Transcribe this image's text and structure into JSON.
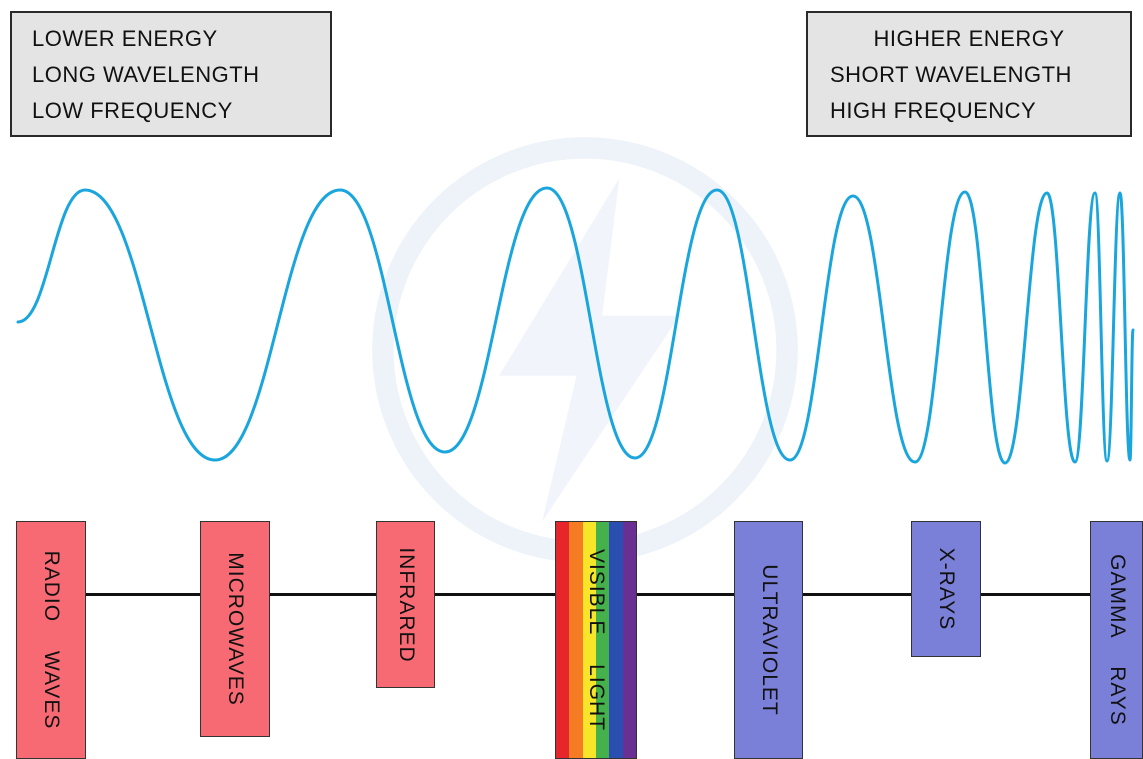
{
  "energy_low": {
    "line1": "LOWER  ENERGY",
    "line2": "LONG   WAVELENGTH",
    "line3": "LOW   FREQUENCY"
  },
  "energy_high": {
    "line1": "HIGHER  ENERGY",
    "line2": "SHORT   WAVELENGTH",
    "line3": "HIGH   FREQUENCY"
  },
  "bands": [
    {
      "id": "radio",
      "label": "RADIO WAVES",
      "color": "#f76a74"
    },
    {
      "id": "microwaves",
      "label": "MICROWAVES",
      "color": "#f76a74"
    },
    {
      "id": "infrared",
      "label": "INFRARED",
      "color": "#f76a74"
    },
    {
      "id": "visible",
      "label": "VISIBLE LIGHT",
      "color": "rainbow"
    },
    {
      "id": "ultraviolet",
      "label": "ULTRAVIOLET",
      "color": "#7a7fd8"
    },
    {
      "id": "xrays",
      "label": "X-RAYS",
      "color": "#7a7fd8"
    },
    {
      "id": "gamma",
      "label": "GAMMA RAYS",
      "color": "#7a7fd8"
    }
  ],
  "colors": {
    "wave": "#1aa6dd",
    "low_energy_band": "#f76a74",
    "high_energy_band": "#7a7fd8",
    "box_fill": "#e4e4e4",
    "rainbow": [
      "#e7262b",
      "#f57c22",
      "#f7e52a",
      "#45b14d",
      "#2a4fb0",
      "#6a2f93"
    ]
  },
  "icons": {
    "watermark": "lightning-bolt-icon"
  }
}
